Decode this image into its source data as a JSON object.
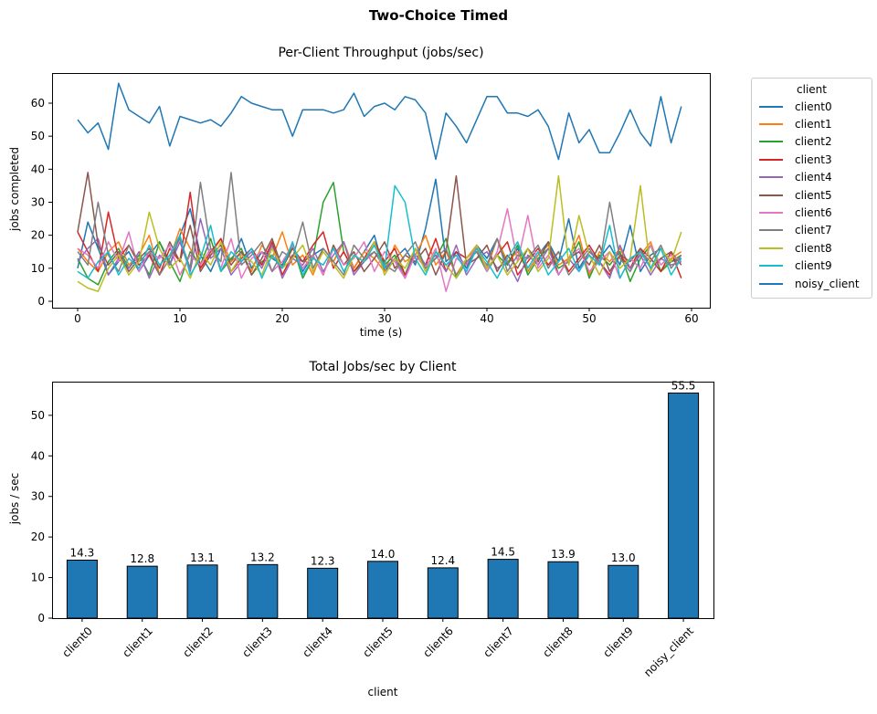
{
  "figure": {
    "suptitle": "Two-Choice Timed"
  },
  "chart_data": [
    {
      "type": "line",
      "title": "Per-Client Throughput (jobs/sec)",
      "xlabel": "time (s)",
      "ylabel": "jobs completed",
      "xticks": [
        0,
        10,
        20,
        30,
        40,
        50,
        60
      ],
      "yticks": [
        0,
        10,
        20,
        30,
        40,
        50,
        60
      ],
      "xlim": [
        -2.5,
        61.8
      ],
      "ylim": [
        -1.9,
        69.1
      ],
      "grid": false,
      "legend_title": "client",
      "legend_position": "outside-right",
      "x_step": 1,
      "series": [
        {
          "name": "client0",
          "color": "#1f77b4",
          "values": [
            10,
            24,
            16,
            8,
            12,
            15,
            9,
            14,
            18,
            11,
            20,
            28,
            14,
            9,
            16,
            12,
            19,
            10,
            15,
            13,
            11,
            17,
            9,
            14,
            16,
            12,
            18,
            10,
            15,
            20,
            9,
            13,
            16,
            11,
            22,
            37,
            12,
            15,
            10,
            17,
            13,
            19,
            11,
            16,
            9,
            14,
            18,
            12,
            25,
            10,
            15,
            13,
            17,
            11,
            23,
            9,
            14,
            16,
            12,
            13
          ]
        },
        {
          "name": "client1",
          "color": "#ff7f0e",
          "values": [
            16,
            12,
            9,
            15,
            18,
            11,
            14,
            20,
            8,
            13,
            22,
            16,
            10,
            14,
            19,
            12,
            15,
            9,
            17,
            13,
            21,
            11,
            14,
            8,
            16,
            12,
            18,
            10,
            15,
            13,
            9,
            17,
            12,
            14,
            20,
            11,
            15,
            8,
            13,
            16,
            10,
            19,
            12,
            15,
            9,
            14,
            17,
            11,
            13,
            20,
            8,
            15,
            12,
            16,
            10,
            14,
            18,
            9,
            13,
            15
          ]
        },
        {
          "name": "client2",
          "color": "#2ca02c",
          "values": [
            13,
            7,
            5,
            12,
            16,
            10,
            14,
            8,
            18,
            12,
            6,
            15,
            11,
            19,
            9,
            13,
            16,
            8,
            12,
            14,
            10,
            17,
            7,
            13,
            30,
            36,
            15,
            9,
            12,
            18,
            11,
            14,
            8,
            16,
            10,
            13,
            19,
            7,
            12,
            15,
            9,
            14,
            11,
            17,
            8,
            13,
            16,
            10,
            12,
            18,
            7,
            14,
            11,
            15,
            6,
            13,
            17,
            9,
            12,
            14
          ]
        },
        {
          "name": "client3",
          "color": "#d62728",
          "values": [
            21,
            15,
            9,
            27,
            13,
            17,
            11,
            14,
            8,
            16,
            12,
            33,
            10,
            15,
            19,
            9,
            13,
            16,
            11,
            18,
            8,
            14,
            12,
            17,
            21,
            10,
            15,
            9,
            13,
            18,
            12,
            16,
            8,
            14,
            11,
            19,
            9,
            15,
            13,
            17,
            10,
            14,
            18,
            8,
            12,
            16,
            11,
            15,
            9,
            13,
            17,
            12,
            8,
            14,
            10,
            16,
            13,
            9,
            15,
            7
          ]
        },
        {
          "name": "client4",
          "color": "#9467bd",
          "values": [
            12,
            16,
            19,
            8,
            13,
            10,
            15,
            7,
            14,
            11,
            18,
            9,
            25,
            13,
            16,
            8,
            12,
            15,
            10,
            17,
            7,
            13,
            11,
            16,
            9,
            14,
            18,
            8,
            12,
            15,
            10,
            13,
            7,
            16,
            11,
            14,
            9,
            17,
            8,
            13,
            15,
            10,
            12,
            6,
            14,
            11,
            16,
            8,
            13,
            9,
            15,
            12,
            7,
            17,
            10,
            14,
            8,
            13,
            11,
            12
          ]
        },
        {
          "name": "client5",
          "color": "#8c564b",
          "values": [
            21,
            39,
            17,
            11,
            15,
            9,
            13,
            16,
            10,
            18,
            12,
            23,
            9,
            14,
            17,
            11,
            15,
            8,
            13,
            19,
            10,
            16,
            12,
            14,
            8,
            17,
            11,
            15,
            9,
            13,
            18,
            10,
            14,
            12,
            16,
            8,
            15,
            38,
            11,
            13,
            17,
            9,
            14,
            10,
            16,
            12,
            18,
            8,
            13,
            15,
            11,
            17,
            9,
            14,
            12,
            16,
            10,
            13,
            15,
            11
          ]
        },
        {
          "name": "client6",
          "color": "#e377c2",
          "values": [
            16,
            14,
            10,
            18,
            12,
            21,
            9,
            15,
            13,
            17,
            8,
            14,
            11,
            16,
            10,
            19,
            7,
            13,
            15,
            9,
            12,
            17,
            10,
            14,
            8,
            16,
            11,
            13,
            18,
            9,
            15,
            12,
            7,
            14,
            10,
            16,
            3,
            13,
            11,
            17,
            9,
            15,
            28,
            12,
            26,
            10,
            14,
            8,
            13,
            16,
            9,
            12,
            15,
            7,
            13,
            10,
            17,
            11,
            14,
            12
          ]
        },
        {
          "name": "client7",
          "color": "#7f7f7f",
          "values": [
            15,
            11,
            30,
            14,
            9,
            17,
            12,
            15,
            8,
            13,
            19,
            10,
            36,
            16,
            12,
            39,
            11,
            14,
            18,
            9,
            15,
            13,
            24,
            10,
            16,
            12,
            8,
            17,
            13,
            15,
            11,
            9,
            14,
            18,
            10,
            13,
            16,
            8,
            12,
            15,
            11,
            19,
            9,
            14,
            13,
            17,
            10,
            15,
            8,
            12,
            16,
            11,
            30,
            13,
            9,
            15,
            12,
            17,
            10,
            14
          ]
        },
        {
          "name": "client8",
          "color": "#bcbd22",
          "values": [
            6,
            4,
            3,
            10,
            14,
            8,
            12,
            27,
            16,
            10,
            13,
            7,
            15,
            11,
            18,
            9,
            14,
            12,
            8,
            16,
            10,
            13,
            17,
            9,
            15,
            11,
            7,
            14,
            12,
            18,
            8,
            13,
            10,
            16,
            9,
            15,
            11,
            7,
            13,
            17,
            10,
            14,
            8,
            12,
            16,
            9,
            13,
            38,
            11,
            26,
            14,
            8,
            15,
            10,
            13,
            35,
            9,
            16,
            12,
            21
          ]
        },
        {
          "name": "client9",
          "color": "#17becf",
          "values": [
            9,
            7,
            12,
            15,
            8,
            13,
            10,
            17,
            11,
            14,
            20,
            8,
            13,
            23,
            9,
            15,
            12,
            16,
            7,
            14,
            10,
            18,
            8,
            13,
            11,
            16,
            9,
            14,
            12,
            17,
            10,
            35,
            30,
            13,
            8,
            15,
            11,
            14,
            9,
            16,
            12,
            7,
            13,
            18,
            10,
            15,
            8,
            12,
            16,
            9,
            14,
            11,
            23,
            7,
            13,
            15,
            10,
            16,
            8,
            13
          ]
        },
        {
          "name": "noisy_client",
          "color": "#1f77b4",
          "values": [
            55,
            51,
            54,
            46,
            66,
            58,
            56,
            54,
            59,
            47,
            56,
            55,
            54,
            55,
            53,
            57,
            62,
            60,
            59,
            58,
            58,
            50,
            58,
            58,
            58,
            57,
            58,
            63,
            56,
            59,
            60,
            58,
            62,
            61,
            57,
            43,
            57,
            53,
            48,
            55,
            62,
            62,
            57,
            57,
            56,
            58,
            53,
            43,
            57,
            48,
            52,
            45,
            45,
            51,
            58,
            51,
            47,
            62,
            48,
            59
          ]
        }
      ]
    },
    {
      "type": "bar",
      "title": "Total Jobs/sec by Client",
      "xlabel": "client",
      "ylabel": "jobs / sec",
      "yticks": [
        0,
        10,
        20,
        30,
        40,
        50
      ],
      "ylim": [
        0,
        58.3
      ],
      "grid": false,
      "categories": [
        "client0",
        "client1",
        "client2",
        "client3",
        "client4",
        "client5",
        "client6",
        "client7",
        "client8",
        "client9",
        "noisy_client"
      ],
      "values": [
        14.3,
        12.8,
        13.1,
        13.2,
        12.3,
        14.0,
        12.4,
        14.5,
        13.9,
        13.0,
        55.5
      ],
      "value_labels": [
        "14.3",
        "12.8",
        "13.1",
        "13.2",
        "12.3",
        "14.0",
        "12.4",
        "14.5",
        "13.9",
        "13.0",
        "55.5"
      ],
      "bar_color": "#1f77b4",
      "bar_edge_color": "#000000"
    }
  ]
}
